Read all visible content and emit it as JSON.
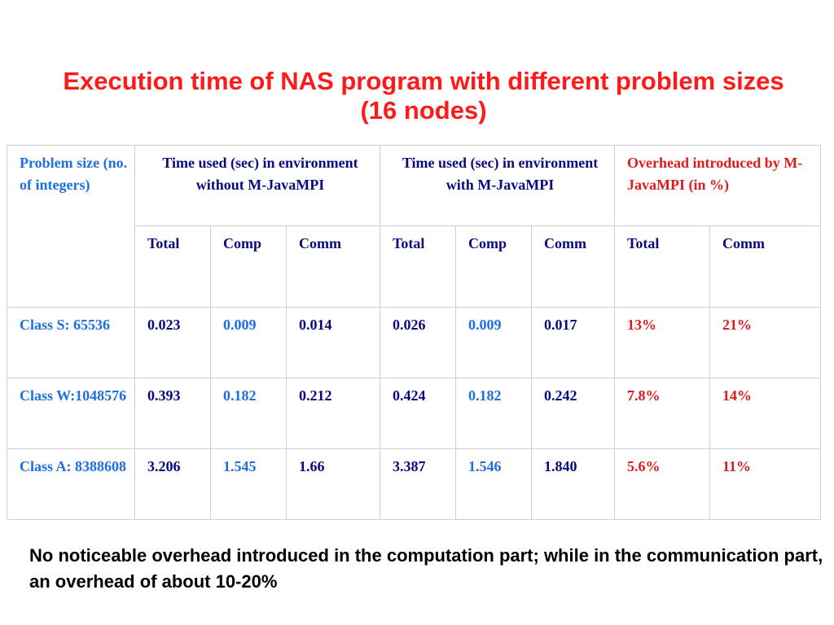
{
  "title": "Execution time of NAS program with different problem sizes (16 nodes)",
  "table": {
    "group_headers": {
      "problem_size": "Problem size (no. of integers)",
      "without": "Time used (sec) in environment without M-JavaMPI",
      "with": "Time used (sec) in environment with M-JavaMPI",
      "overhead": "Overhead introduced by M-JavaMPI (in %)"
    },
    "subheaders": [
      "Total",
      "Comp",
      "Comm",
      "Total",
      "Comp",
      "Comm",
      "Total",
      "Comm"
    ],
    "rows": [
      {
        "label": "Class S: 65536",
        "cells": [
          "0.023",
          "0.009",
          "0.014",
          "0.026",
          "0.009",
          "0.017",
          "13%",
          "21%"
        ]
      },
      {
        "label": "Class W:1048576",
        "cells": [
          "0.393",
          "0.182",
          "0.212",
          "0.424",
          "0.182",
          "0.242",
          "7.8%",
          "14%"
        ]
      },
      {
        "label": "Class A: 8388608",
        "cells": [
          "3.206",
          "1.545",
          "1.66",
          "3.387",
          "1.546",
          "1.840",
          "5.6%",
          "11%"
        ]
      }
    ]
  },
  "note": "No noticeable overhead introduced in the computation part; while in the communication part, an overhead of about 10-20%",
  "colors": {
    "title": "#ff1a1a",
    "label": "#1f6fe0",
    "comp": "#1f6fe0",
    "overhead": "#e01a1a",
    "value": "#0a0a80"
  }
}
